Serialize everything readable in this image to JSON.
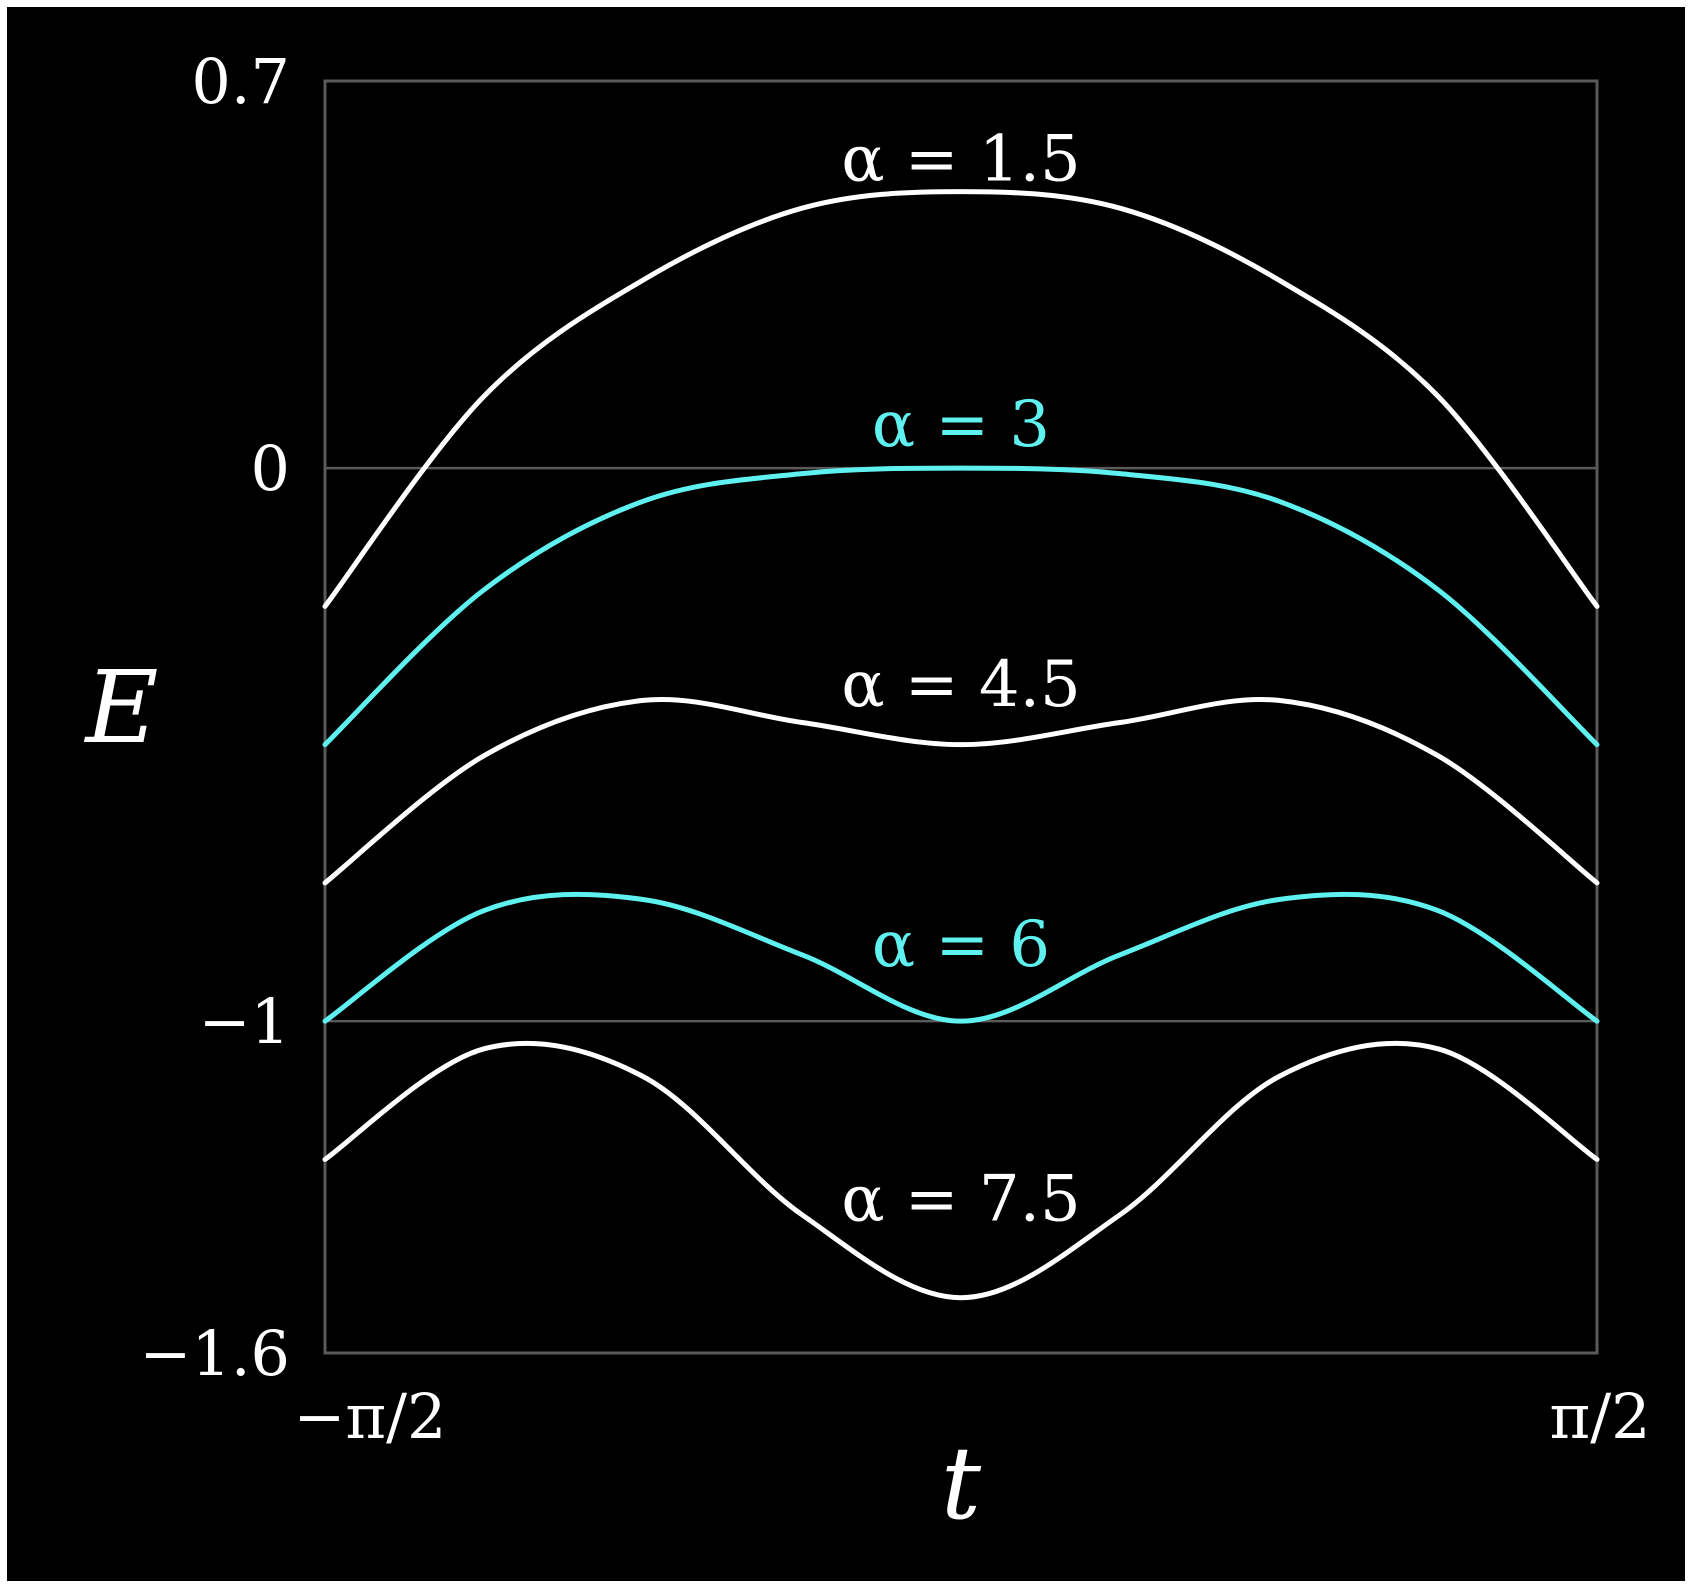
{
  "chart_data": {
    "type": "line",
    "xlabel": "t",
    "ylabel": "E",
    "xlim": [
      -1.5708,
      1.5708
    ],
    "ylim": [
      -1.6,
      0.7
    ],
    "x_ticks": [
      "−π/2",
      "π/2"
    ],
    "y_ticks": [
      {
        "value": 0.7,
        "label": "0.7"
      },
      {
        "value": 0,
        "label": "0"
      },
      {
        "value": -1,
        "label": "−1"
      },
      {
        "value": -1.6,
        "label": "−1.6"
      }
    ],
    "grid": {
      "horizontal_lines": [
        0,
        -1
      ],
      "vertical_lines": false
    },
    "colors": {
      "background": "#000000",
      "default": "#ffffff",
      "highlight": "#5ff0f0",
      "frame": "#5a5a5a"
    },
    "series": [
      {
        "label": "α = 1.5",
        "alpha": 1.5,
        "color": "#ffffff",
        "label_pos": {
          "t": 0,
          "E": 0.52
        },
        "x": [
          -1.5708,
          -1.1781,
          -0.7854,
          -0.3927,
          0,
          0.3927,
          0.7854,
          1.1781,
          1.5708
        ],
        "y": [
          -0.25,
          0.13,
          0.34,
          0.47,
          0.5,
          0.47,
          0.34,
          0.13,
          -0.25
        ]
      },
      {
        "label": "α = 3",
        "alpha": 3,
        "color": "#5ff0f0",
        "label_pos": {
          "t": 0,
          "E": 0.04
        },
        "x": [
          -1.5708,
          -1.1781,
          -0.7854,
          -0.3927,
          0,
          0.3927,
          0.7854,
          1.1781,
          1.5708
        ],
        "y": [
          -0.5,
          -0.22,
          -0.06,
          -0.01,
          0,
          -0.01,
          -0.06,
          -0.22,
          -0.5
        ]
      },
      {
        "label": "α = 4.5",
        "alpha": 4.5,
        "color": "#ffffff",
        "label_pos": {
          "t": 0,
          "E": -0.43
        },
        "x": [
          -1.5708,
          -1.1781,
          -0.7854,
          -0.3927,
          0,
          0.3927,
          0.7854,
          1.1781,
          1.5708
        ],
        "y": [
          -0.75,
          -0.52,
          -0.42,
          -0.46,
          -0.5,
          -0.46,
          -0.42,
          -0.52,
          -0.75
        ]
      },
      {
        "label": "α = 6",
        "alpha": 6,
        "color": "#5ff0f0",
        "label_pos": {
          "t": 0,
          "E": -0.9
        },
        "x": [
          -1.5708,
          -1.1781,
          -0.7854,
          -0.3927,
          0,
          0.3927,
          0.7854,
          1.1781,
          1.5708
        ],
        "y": [
          -1.0,
          -0.8,
          -0.78,
          -0.88,
          -1.0,
          -0.88,
          -0.78,
          -0.8,
          -1.0
        ]
      },
      {
        "label": "α = 7.5",
        "alpha": 7.5,
        "color": "#ffffff",
        "label_pos": {
          "t": 0,
          "E": -1.36
        },
        "x": [
          -1.5708,
          -1.1781,
          -0.7854,
          -0.3927,
          0,
          0.3927,
          0.7854,
          1.1781,
          1.5708
        ],
        "y": [
          -1.25,
          -1.05,
          -1.1,
          -1.35,
          -1.5,
          -1.35,
          -1.1,
          -1.05,
          -1.25
        ]
      }
    ]
  }
}
